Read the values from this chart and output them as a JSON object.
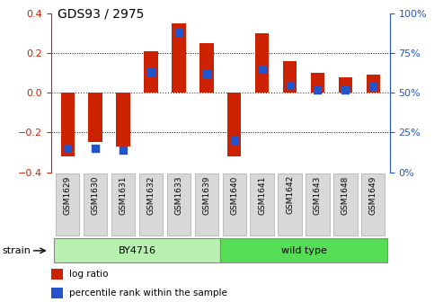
{
  "title": "GDS93 / 2975",
  "samples": [
    "GSM1629",
    "GSM1630",
    "GSM1631",
    "GSM1632",
    "GSM1633",
    "GSM1639",
    "GSM1640",
    "GSM1641",
    "GSM1642",
    "GSM1643",
    "GSM1648",
    "GSM1649"
  ],
  "log_ratio": [
    -0.32,
    -0.25,
    -0.27,
    0.21,
    0.35,
    0.25,
    -0.32,
    0.3,
    0.16,
    0.1,
    0.08,
    0.09
  ],
  "percentile": [
    15,
    15,
    14,
    63,
    88,
    62,
    20,
    65,
    55,
    52,
    52,
    54
  ],
  "bar_color": "#cc2200",
  "dot_color": "#2255cc",
  "left_ylim": [
    -0.4,
    0.4
  ],
  "right_ylim": [
    0,
    100
  ],
  "left_yticks": [
    -0.4,
    -0.2,
    0.0,
    0.2,
    0.4
  ],
  "right_yticks": [
    0,
    25,
    50,
    75,
    100
  ],
  "right_yticklabels": [
    "0%",
    "25%",
    "50%",
    "75%",
    "100%"
  ],
  "hline_color": "#cc0000",
  "dotted_color": "#000000",
  "axis_left_color": "#cc2200",
  "axis_right_color": "#2255cc",
  "bar_width": 0.5,
  "dot_size": 28,
  "group1_color": "#b8f0b0",
  "group2_color": "#55dd55",
  "tick_box_color": "#d8d8d8",
  "tick_box_edge": "#aaaaaa"
}
